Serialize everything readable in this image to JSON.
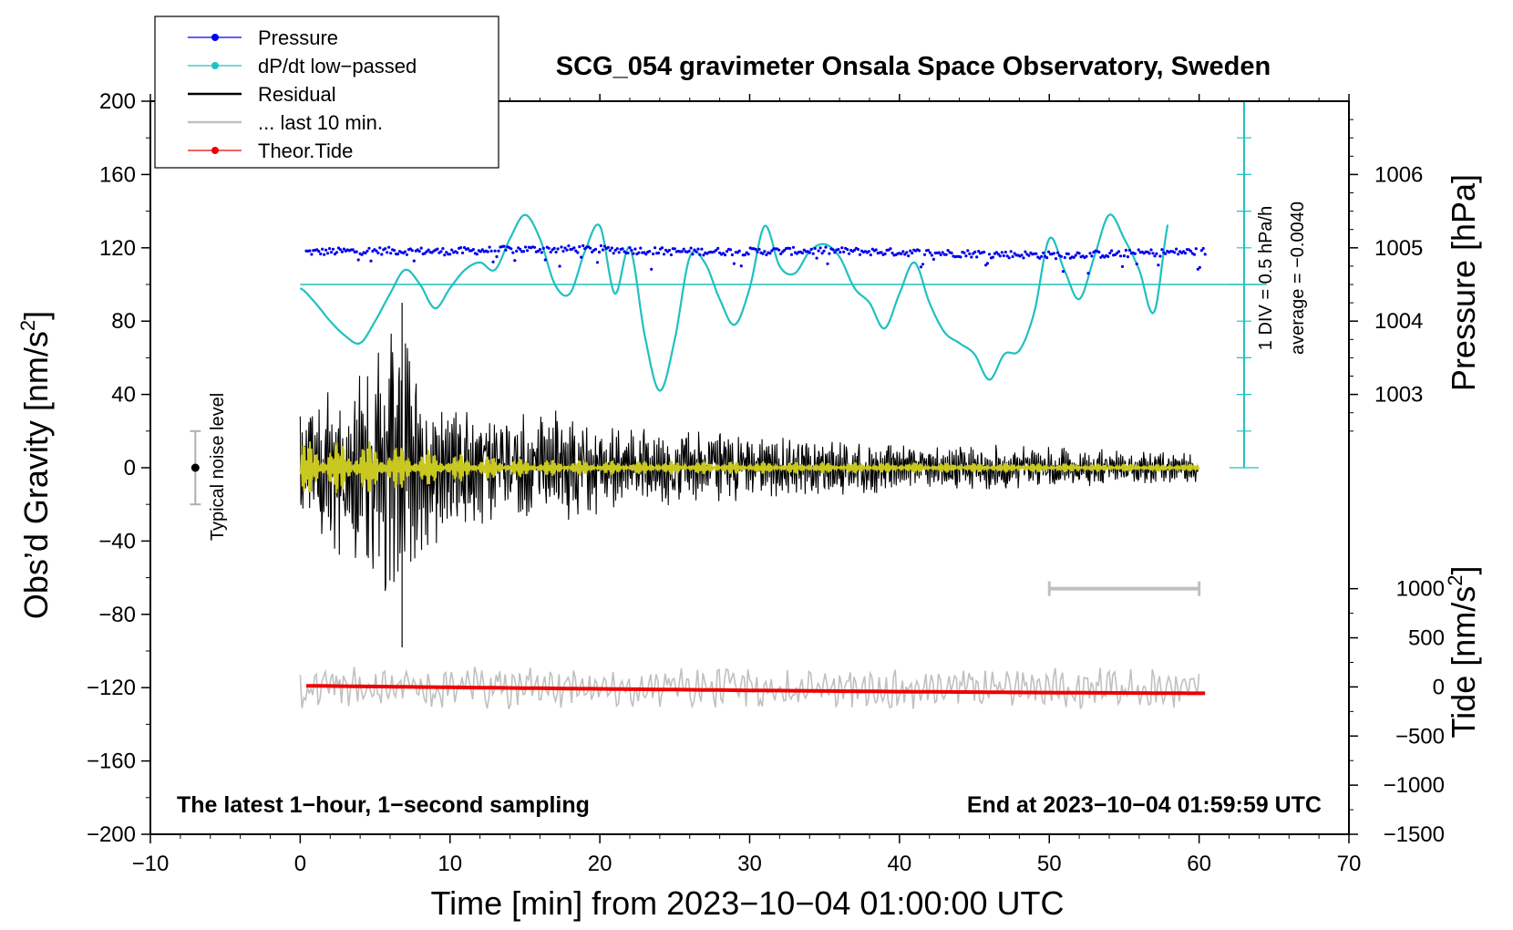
{
  "chart_data": {
    "type": "line",
    "title": "SCG_054 gravimeter Onsala Space Observatory, Sweden",
    "xlabel": "Time [min] from 2023−10−04 01:00:00 UTC",
    "ylabel": "Obs’d Gravity [nm/s²]",
    "ylabel_main": "Obs’d Gravity [nm/s",
    "ylabel_sup": "2",
    "ylabel_close": "]",
    "xlim": [
      -10,
      70
    ],
    "ylim": [
      -200,
      200
    ],
    "x_ticks": [
      -10,
      0,
      10,
      20,
      30,
      40,
      50,
      60,
      70
    ],
    "x_tick_labels": [
      "−10",
      "0",
      "10",
      "20",
      "30",
      "40",
      "50",
      "60",
      "70"
    ],
    "y_ticks": [
      -200,
      -160,
      -120,
      -80,
      -40,
      0,
      40,
      80,
      120,
      160,
      200
    ],
    "y_tick_labels": [
      "−200",
      "−160",
      "−120",
      "−80",
      "−40",
      "0",
      "40",
      "80",
      "120",
      "160",
      "200"
    ],
    "pressure_axis": {
      "label": "Pressure [hPa]",
      "ticks": [
        1003,
        1004,
        1005,
        1006
      ],
      "tick_labels": [
        "1003",
        "1004",
        "1005",
        "1006"
      ],
      "left_gravity_equiv_of_1003": 40,
      "gravity_units_per_hPa": 40
    },
    "tide_axis": {
      "label_main": "Tide [nm/s",
      "label_sup": "2",
      "label_close": "]",
      "ticks": [
        -1500,
        -1000,
        -500,
        0,
        500,
        1000
      ],
      "tick_labels": [
        "−1500",
        "−1000",
        "−500",
        "0",
        "500",
        "1000"
      ],
      "range": [
        -1500,
        1000
      ],
      "gravity_range": [
        -200,
        -66
      ]
    },
    "dpdt_scale": {
      "x_position_min": 63,
      "gravity_range": [
        0,
        200
      ],
      "label_1": "1 DIV = 0.5 hPa/h",
      "label_2": "average = −0.0040",
      "baseline_gravity": 100
    },
    "series": [
      {
        "name": "Pressure",
        "color": "#0000ee",
        "style": "dots",
        "x": [
          0,
          5,
          10,
          15,
          20,
          25,
          30,
          35,
          40,
          45,
          50,
          55,
          60
        ],
        "hPa": [
          1004.94,
          1004.96,
          1004.95,
          1004.98,
          1004.98,
          1004.95,
          1004.95,
          1004.96,
          1004.94,
          1004.92,
          1004.9,
          1004.92,
          1004.95
        ]
      },
      {
        "name": "dP/dt low−passed",
        "color": "#20c0c0",
        "style": "line",
        "x": [
          0,
          1,
          2,
          3,
          4,
          5,
          6,
          7,
          8,
          9,
          10,
          11,
          12,
          13,
          14,
          15,
          16,
          17,
          18,
          19,
          20,
          21,
          22,
          23,
          24,
          25,
          26,
          27,
          28,
          29,
          30,
          31,
          32,
          33,
          34,
          35,
          36,
          37,
          38,
          39,
          40,
          41,
          42,
          43,
          44,
          45,
          46,
          47,
          48,
          49,
          50,
          51,
          52,
          53,
          54,
          55,
          56,
          57,
          58
        ],
        "y": [
          98,
          90,
          80,
          72,
          68,
          80,
          95,
          108,
          100,
          87,
          98,
          108,
          112,
          108,
          125,
          138,
          125,
          100,
          95,
          118,
          132,
          95,
          120,
          72,
          42,
          70,
          115,
          112,
          92,
          78,
          98,
          132,
          110,
          106,
          118,
          122,
          115,
          98,
          90,
          76,
          95,
          112,
          90,
          74,
          68,
          62,
          48,
          62,
          64,
          85,
          125,
          108,
          92,
          115,
          138,
          125,
          108,
          85,
          136
        ],
        "baseline": 100
      },
      {
        "name": "Residual",
        "color": "#000000",
        "style": "line",
        "envelope_x": [
          0,
          3,
          5,
          6.5,
          7,
          8,
          10,
          12,
          14,
          16,
          18,
          20,
          30,
          40,
          50,
          60
        ],
        "envelope_amp": [
          30,
          52,
          62,
          90,
          70,
          55,
          40,
          32,
          30,
          30,
          35,
          25,
          18,
          14,
          12,
          8
        ],
        "min_value": -98,
        "max_value": 90
      },
      {
        "name": "... last 10 min.",
        "color": "#c0c0c0",
        "style": "line",
        "offset": -120,
        "amplitude": 12,
        "bar_x_range": [
          50,
          60
        ],
        "bar_y": -66
      },
      {
        "name": "Theor.Tide",
        "color": "#ee0000",
        "style": "dots",
        "x": [
          0,
          10,
          20,
          30,
          40,
          50,
          60
        ],
        "tide": [
          12,
          -4,
          -20,
          -35,
          -48,
          -58,
          -65
        ]
      },
      {
        "name": "Residual filtered",
        "color": "#c8c820",
        "style": "line",
        "envelope_x": [
          0,
          5,
          10,
          15,
          20,
          40,
          60
        ],
        "envelope_amp": [
          15,
          14,
          8,
          5,
          4,
          3,
          2
        ]
      }
    ],
    "legend": [
      {
        "label": "Pressure",
        "color": "#0000ee",
        "marker": true
      },
      {
        "label": "dP/dt low−passed",
        "color": "#20c0c0",
        "marker": true
      },
      {
        "label": "Residual",
        "color": "#000000",
        "marker": false
      },
      {
        "label": "... last 10 min.",
        "color": "#c0c0c0",
        "marker": false
      },
      {
        "label": "Theor.Tide",
        "color": "#ee0000",
        "marker": true
      }
    ],
    "legend_placement": "top-left",
    "annotations": {
      "noise_label": "Typical noise level",
      "noise_center": 0,
      "noise_half": 20,
      "noise_x": -7,
      "footer_left": "The latest 1−hour, 1−second sampling",
      "footer_right": "End at 2023−10−04 01:59:59 UTC"
    }
  }
}
